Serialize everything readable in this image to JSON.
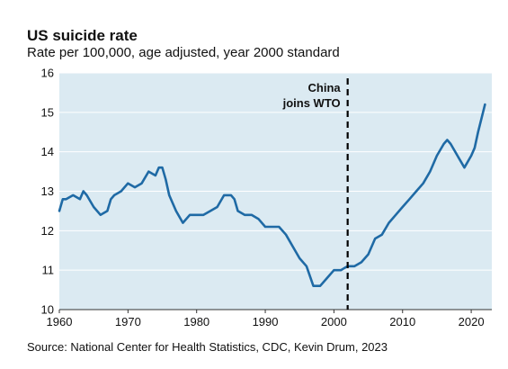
{
  "chart_data": {
    "type": "line",
    "title": "US suicide rate",
    "subtitle": "Rate per 100,000, age adjusted, year 2000 standard",
    "source": "Source: National Center for Health Statistics, CDC, Kevin Drum, 2023",
    "xlabel": "",
    "ylabel": "",
    "xlim": [
      1960,
      2023
    ],
    "ylim": [
      10,
      16
    ],
    "x_ticks": [
      1960,
      1970,
      1980,
      1990,
      2000,
      2010,
      2020
    ],
    "y_ticks": [
      10,
      11,
      12,
      13,
      14,
      15,
      16
    ],
    "grid": true,
    "legend": "none",
    "colors": {
      "plot_background": "#dbeaf2",
      "line": "#1f6aa5",
      "grid": "#ffffff",
      "reference_line": "#000000"
    },
    "series": [
      {
        "x": [
          1960,
          1960.5,
          1961,
          1962,
          1963,
          1963.5,
          1964,
          1965,
          1966,
          1967,
          1967.5,
          1968,
          1969,
          1970,
          1971,
          1972,
          1973,
          1974,
          1974.5,
          1975,
          1975.5,
          1976,
          1977,
          1978,
          1979,
          1980,
          1981,
          1982,
          1983,
          1984,
          1985,
          1985.5,
          1986,
          1987,
          1988,
          1989,
          1990,
          1991,
          1992,
          1993,
          1994,
          1995,
          1996,
          1997,
          1998,
          1999,
          2000,
          2001,
          2002,
          2003,
          2004,
          2005,
          2006,
          2007,
          2008,
          2009,
          2010,
          2011,
          2012,
          2013,
          2014,
          2015,
          2016,
          2016.5,
          2017,
          2018,
          2019,
          2020,
          2020.5,
          2021,
          2022
        ],
        "values": [
          12.5,
          12.8,
          12.8,
          12.9,
          12.8,
          13.0,
          12.9,
          12.6,
          12.4,
          12.5,
          12.8,
          12.9,
          13.0,
          13.2,
          13.1,
          13.2,
          13.5,
          13.4,
          13.6,
          13.6,
          13.3,
          12.9,
          12.5,
          12.2,
          12.4,
          12.4,
          12.4,
          12.5,
          12.6,
          12.9,
          12.9,
          12.8,
          12.5,
          12.4,
          12.4,
          12.3,
          12.1,
          12.1,
          12.1,
          11.9,
          11.6,
          11.3,
          11.1,
          10.6,
          10.6,
          10.8,
          11.0,
          11.0,
          11.1,
          11.1,
          11.2,
          11.4,
          11.8,
          11.9,
          12.2,
          12.4,
          12.6,
          12.8,
          13.0,
          13.2,
          13.5,
          13.9,
          14.2,
          14.3,
          14.2,
          13.9,
          13.6,
          13.9,
          14.1,
          14.5,
          15.2
        ]
      }
    ],
    "annotations": [
      {
        "x": 2002,
        "text_lines": [
          "China",
          "joins WTO"
        ],
        "style": "dashed-vertical"
      }
    ]
  }
}
